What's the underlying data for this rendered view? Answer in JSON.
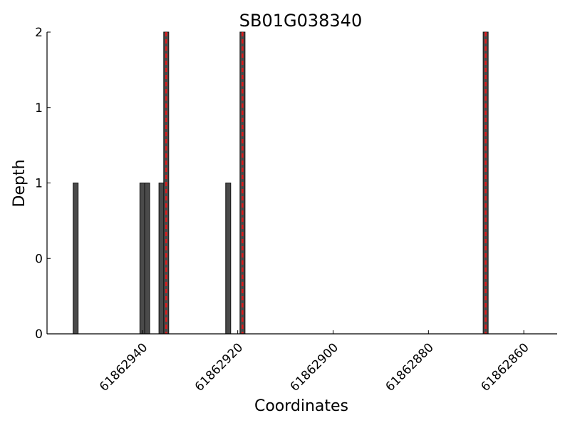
{
  "chart_data": {
    "type": "bar",
    "title": "SB01G038340",
    "xlabel": "Coordinates",
    "ylabel": "Depth",
    "x_axis_reversed": true,
    "xlim": [
      61862960,
      61862853
    ],
    "ylim": [
      0,
      2
    ],
    "x_ticks": [
      61862940,
      61862920,
      61862900,
      61862880,
      61862860
    ],
    "y_tick_values": [
      0,
      0.5,
      1,
      1.5,
      2
    ],
    "y_tick_labels": [
      "0",
      "0",
      "1",
      "1",
      "2"
    ],
    "grid": false,
    "legend": "none",
    "bar_color": "#4a4a4a",
    "highlight_color": "#e0191b",
    "bars": [
      {
        "x": 61862954,
        "depth": 1
      },
      {
        "x": 61862940,
        "depth": 1
      },
      {
        "x": 61862939,
        "depth": 1
      },
      {
        "x": 61862936,
        "depth": 1
      },
      {
        "x": 61862935,
        "depth": 2
      },
      {
        "x": 61862922,
        "depth": 1
      },
      {
        "x": 61862919,
        "depth": 2
      },
      {
        "x": 61862868,
        "depth": 2
      }
    ],
    "highlight_positions": [
      61862935,
      61862919,
      61862868
    ]
  }
}
